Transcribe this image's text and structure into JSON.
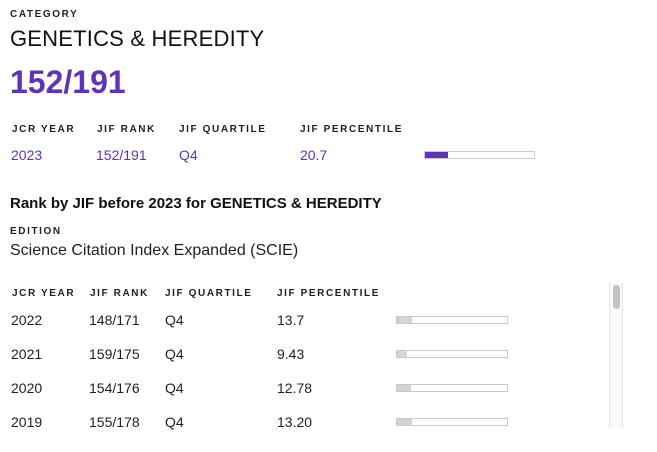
{
  "category": {
    "eyebrow": "CATEGORY",
    "title": "GENETICS & HEREDITY",
    "rank": "152/191"
  },
  "current": {
    "headers": [
      "JCR YEAR",
      "JIF RANK",
      "JIF QUARTILE",
      "JIF PERCENTILE"
    ],
    "year": "2023",
    "rank": "152/191",
    "quartile": "Q4",
    "percentile": "20.7",
    "percentile_fraction": 0.207,
    "bar_color": "#5e33b8"
  },
  "history": {
    "title": "Rank by JIF before 2023 for GENETICS & HEREDITY",
    "edition_label": "EDITION",
    "edition_value": "Science Citation Index Expanded (SCIE)",
    "headers": [
      "JCR YEAR",
      "JIF RANK",
      "JIF QUARTILE",
      "JIF PERCENTILE"
    ],
    "bar_color": "#d4d4d4",
    "rows": [
      {
        "year": "2022",
        "rank": "148/171",
        "quartile": "Q4",
        "percentile": "13.7",
        "fraction": 0.137
      },
      {
        "year": "2021",
        "rank": "159/175",
        "quartile": "Q4",
        "percentile": "9.43",
        "fraction": 0.0943
      },
      {
        "year": "2020",
        "rank": "154/176",
        "quartile": "Q4",
        "percentile": "12.78",
        "fraction": 0.1278
      },
      {
        "year": "2019",
        "rank": "155/178",
        "quartile": "Q4",
        "percentile": "13.20",
        "fraction": 0.132
      }
    ]
  }
}
